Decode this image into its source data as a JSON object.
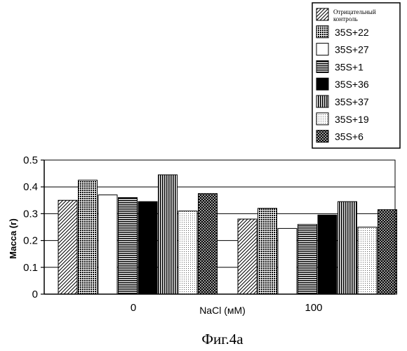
{
  "chart_data": {
    "type": "bar",
    "title": "",
    "caption": "Фиг.4a",
    "xlabel": "NaCl (мМ)",
    "ylabel": "Масса (г)",
    "ylim": [
      0,
      0.5
    ],
    "yticks": [
      "0",
      "0.1",
      "0.2",
      "0.3",
      "0.4",
      "0.5"
    ],
    "categories": [
      "0",
      "100"
    ],
    "grid": true,
    "legend_position": "top-right",
    "series": [
      {
        "name": "Отрицательный контроль",
        "pattern": "diag-dense",
        "values": [
          0.35,
          0.28
        ]
      },
      {
        "name": "35S+22",
        "pattern": "grid-dots",
        "values": [
          0.425,
          0.32
        ]
      },
      {
        "name": "35S+27",
        "pattern": "white",
        "values": [
          0.37,
          0.245
        ]
      },
      {
        "name": "35S+1",
        "pattern": "horiz",
        "values": [
          0.36,
          0.26
        ]
      },
      {
        "name": "35S+36",
        "pattern": "black",
        "values": [
          0.345,
          0.295
        ]
      },
      {
        "name": "35S+37",
        "pattern": "vert",
        "values": [
          0.445,
          0.345
        ]
      },
      {
        "name": "35S+19",
        "pattern": "light-dots",
        "values": [
          0.31,
          0.25
        ]
      },
      {
        "name": "35S+6",
        "pattern": "cross",
        "values": [
          0.375,
          0.315
        ]
      }
    ]
  }
}
